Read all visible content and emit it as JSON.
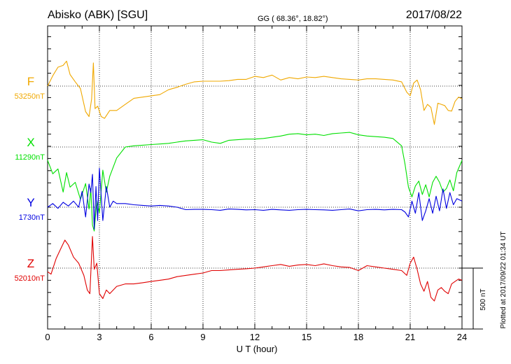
{
  "header": {
    "station": "Abisko (ABK)  [SGU]",
    "coords": "GG ( 68.36°,  18.82°)",
    "date": "2017/08/22"
  },
  "footer": {
    "xlabel": "U T (hour)",
    "plotted": "Plotted at 2017/09/22 01:34 UT"
  },
  "scale_bar": {
    "label": "500 nT",
    "value": 500
  },
  "chart_data": {
    "type": "line",
    "title": "Abisko (ABK)  [SGU]",
    "xlabel": "U T (hour)",
    "ylabel": "",
    "x_ticks": [
      0,
      3,
      6,
      9,
      12,
      15,
      18,
      21,
      24
    ],
    "xlim": [
      0,
      24
    ],
    "grid": true,
    "scale_nT": 500,
    "series": [
      {
        "name": "F",
        "baseline_label": "53250nT",
        "baseline": 53250,
        "color": "#f0a800",
        "x": [
          0,
          0.3,
          0.6,
          0.9,
          1.1,
          1.3,
          1.6,
          1.9,
          2.2,
          2.4,
          2.55,
          2.65,
          2.75,
          2.9,
          3.1,
          3.3,
          3.6,
          4.0,
          4.5,
          5.0,
          5.5,
          6.0,
          6.5,
          7.0,
          7.5,
          8.0,
          8.5,
          9.0,
          9.5,
          10.0,
          10.5,
          11.0,
          11.5,
          12.0,
          12.5,
          13.0,
          13.5,
          14.0,
          14.5,
          15.0,
          15.5,
          16.0,
          16.5,
          17.0,
          17.5,
          18.0,
          18.5,
          19.0,
          19.5,
          20.0,
          20.5,
          20.8,
          21.0,
          21.2,
          21.4,
          21.6,
          21.8,
          22.0,
          22.2,
          22.4,
          22.6,
          22.8,
          23.0,
          23.2,
          23.4,
          23.6,
          23.8,
          24.0
        ],
        "y": [
          53250,
          53335,
          53405,
          53420,
          53455,
          53345,
          53285,
          53230,
          53040,
          53000,
          53145,
          53440,
          53065,
          53085,
          53000,
          52985,
          53050,
          53050,
          53100,
          53150,
          53160,
          53170,
          53180,
          53220,
          53240,
          53265,
          53285,
          53290,
          53290,
          53290,
          53295,
          53305,
          53305,
          53330,
          53320,
          53340,
          53300,
          53320,
          53310,
          53325,
          53320,
          53330,
          53320,
          53310,
          53305,
          53300,
          53310,
          53310,
          53305,
          53300,
          53285,
          53200,
          53170,
          53275,
          53300,
          53220,
          53050,
          53100,
          53075,
          52935,
          53110,
          53100,
          53090,
          53050,
          53045,
          53125,
          53160,
          53145
        ]
      },
      {
        "name": "X",
        "baseline_label": "11290nT",
        "baseline": 11290,
        "color": "#00e000",
        "x": [
          0,
          0.3,
          0.6,
          0.9,
          1.1,
          1.3,
          1.6,
          1.9,
          2.2,
          2.4,
          2.5,
          2.6,
          2.7,
          2.85,
          3.0,
          3.2,
          3.4,
          3.6,
          4.0,
          4.5,
          5.0,
          5.5,
          6.0,
          6.5,
          7.0,
          7.5,
          8.0,
          8.5,
          9.0,
          9.5,
          10.0,
          10.5,
          11.0,
          11.5,
          12.0,
          12.5,
          13.0,
          13.5,
          14.0,
          14.5,
          15.0,
          15.5,
          16.0,
          16.5,
          17.0,
          17.5,
          18.0,
          18.5,
          19.0,
          19.5,
          20.0,
          20.5,
          20.7,
          20.9,
          21.1,
          21.3,
          21.5,
          21.7,
          21.9,
          22.1,
          22.3,
          22.5,
          22.7,
          22.9,
          23.1,
          23.3,
          23.5,
          23.7,
          24.0
        ],
        "y": [
          11180,
          11070,
          11110,
          10920,
          11080,
          10960,
          11000,
          10860,
          10990,
          10780,
          10950,
          10650,
          10600,
          10850,
          10750,
          11100,
          10920,
          11050,
          11200,
          11290,
          11300,
          11305,
          11310,
          11315,
          11320,
          11330,
          11340,
          11345,
          11350,
          11330,
          11320,
          11345,
          11350,
          11355,
          11355,
          11360,
          11370,
          11380,
          11395,
          11400,
          11390,
          11395,
          11385,
          11400,
          11405,
          11410,
          11390,
          11380,
          11375,
          11370,
          11360,
          11300,
          11150,
          10960,
          10880,
          10970,
          11010,
          10900,
          10980,
          10880,
          11000,
          11050,
          11000,
          10920,
          10950,
          11020,
          10930,
          11080,
          11180
        ]
      },
      {
        "name": "Y",
        "baseline_label": "1730nT",
        "baseline": 1730,
        "color": "#0000e0",
        "x": [
          0,
          0.3,
          0.6,
          0.9,
          1.2,
          1.5,
          1.8,
          2.0,
          2.2,
          2.4,
          2.5,
          2.6,
          2.7,
          2.8,
          2.9,
          3.0,
          3.2,
          3.4,
          3.6,
          3.8,
          4.0,
          4.5,
          5.0,
          5.5,
          6.0,
          6.5,
          7.0,
          7.5,
          8.0,
          8.5,
          9.0,
          9.5,
          10.0,
          10.5,
          11.0,
          11.5,
          12.0,
          12.5,
          13.0,
          13.5,
          14.0,
          14.5,
          15.0,
          15.5,
          16.0,
          16.5,
          17.0,
          17.5,
          18.0,
          18.5,
          19.0,
          19.5,
          20.0,
          20.5,
          20.7,
          20.9,
          21.1,
          21.3,
          21.5,
          21.7,
          21.9,
          22.1,
          22.3,
          22.5,
          22.7,
          22.9,
          23.1,
          23.3,
          23.5,
          23.7,
          24.0
        ],
        "y": [
          1730,
          1760,
          1720,
          1770,
          1740,
          1780,
          1730,
          1860,
          1650,
          1920,
          1850,
          2000,
          1550,
          1900,
          1620,
          2050,
          1620,
          1900,
          1730,
          1780,
          1760,
          1760,
          1750,
          1745,
          1740,
          1745,
          1740,
          1730,
          1710,
          1712,
          1712,
          1710,
          1705,
          1715,
          1712,
          1708,
          1710,
          1705,
          1712,
          1708,
          1705,
          1710,
          1712,
          1710,
          1708,
          1705,
          1710,
          1715,
          1700,
          1710,
          1712,
          1708,
          1712,
          1710,
          1690,
          1650,
          1780,
          1680,
          1850,
          1620,
          1700,
          1800,
          1680,
          1820,
          1700,
          1880,
          1720,
          1850,
          1750,
          1800,
          1780
        ]
      },
      {
        "name": "Z",
        "baseline_label": "52010nT",
        "baseline": 52010,
        "color": "#e00000",
        "x": [
          0,
          0.2,
          0.5,
          0.8,
          1.0,
          1.2,
          1.5,
          1.8,
          2.1,
          2.3,
          2.45,
          2.6,
          2.7,
          2.85,
          3.0,
          3.2,
          3.4,
          3.6,
          4.0,
          4.5,
          5.0,
          5.5,
          6.0,
          6.5,
          7.0,
          7.5,
          8.0,
          8.5,
          9.0,
          9.5,
          10.0,
          10.5,
          11.0,
          11.5,
          12.0,
          12.5,
          13.0,
          13.5,
          14.0,
          14.5,
          15.0,
          15.5,
          16.0,
          16.5,
          17.0,
          17.5,
          18.0,
          18.5,
          19.0,
          19.5,
          20.0,
          20.5,
          20.8,
          21.0,
          21.2,
          21.4,
          21.6,
          21.8,
          22.0,
          22.2,
          22.4,
          22.6,
          22.8,
          23.0,
          23.2,
          23.4,
          23.6,
          23.8,
          24.0
        ],
        "y": [
          51980,
          51960,
          52090,
          52180,
          52240,
          52200,
          52100,
          52050,
          51950,
          51830,
          51800,
          52270,
          52000,
          52050,
          51800,
          51760,
          51830,
          51800,
          51860,
          51880,
          51880,
          51890,
          51900,
          51910,
          51920,
          51940,
          51950,
          51960,
          51970,
          51990,
          51990,
          51995,
          52000,
          52005,
          52010,
          52020,
          52030,
          52040,
          52025,
          52035,
          52040,
          52030,
          52045,
          52030,
          52020,
          52015,
          51990,
          52030,
          52020,
          52010,
          52000,
          51990,
          51950,
          52050,
          52100,
          52000,
          51880,
          51820,
          51900,
          51770,
          51740,
          51830,
          51850,
          51820,
          51800,
          51880,
          51900,
          51920,
          51910
        ]
      }
    ]
  }
}
